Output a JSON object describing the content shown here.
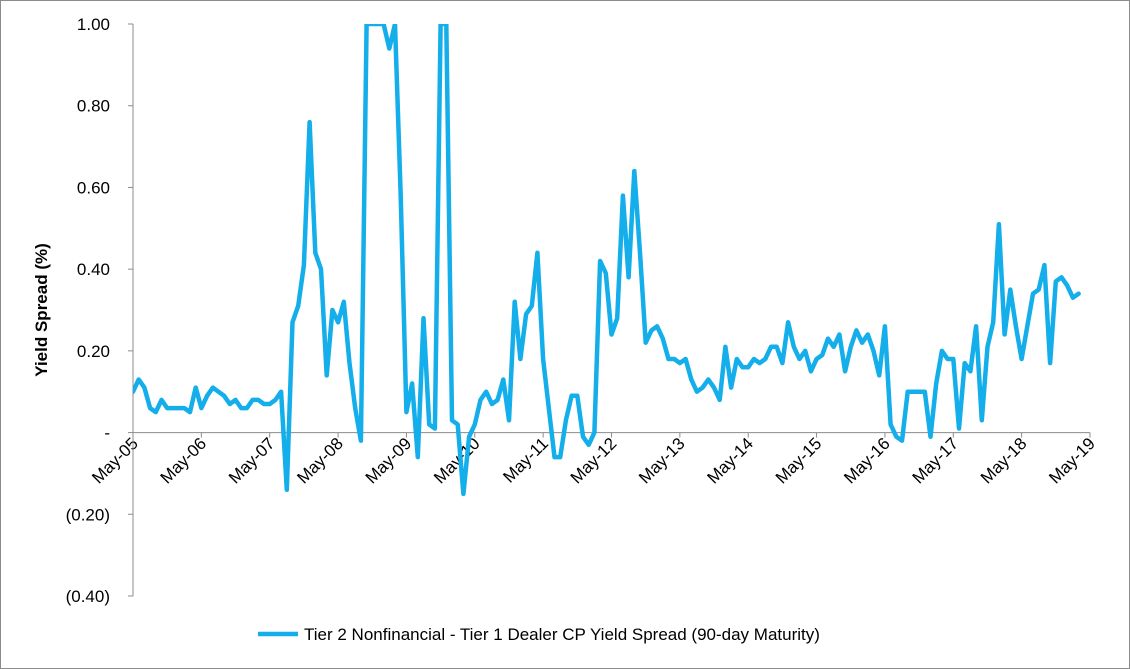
{
  "chart_data": {
    "type": "line",
    "title": "",
    "xlabel": "",
    "ylabel": "Yield Spread (%)",
    "ylim": [
      -0.4,
      1.0
    ],
    "y_ticks": [
      1.0,
      0.8,
      0.6,
      0.4,
      0.2,
      0,
      -0.2,
      -0.4
    ],
    "y_tick_labels": [
      "1.00",
      "0.80",
      "0.60",
      "0.40",
      "0.20",
      "-",
      "(0.20)",
      "(0.40)"
    ],
    "x_tick_labels": [
      "May-05",
      "May-06",
      "May-07",
      "May-08",
      "May-09",
      "May-10",
      "May-11",
      "May-12",
      "May-13",
      "May-14",
      "May-15",
      "May-16",
      "May-17",
      "May-18",
      "May-19"
    ],
    "x_start": "2005-05",
    "x_end": "2019-05",
    "grid": false,
    "legend_position": "bottom",
    "series": [
      {
        "name": "Tier 2 Nonfinancial - Tier 1 Dealer CP Yield Spread (90-day Maturity)",
        "color": "#14AEEA",
        "points": [
          [
            "2005-05",
            0.1
          ],
          [
            "2005-06",
            0.13
          ],
          [
            "2005-07",
            0.11
          ],
          [
            "2005-08",
            0.06
          ],
          [
            "2005-09",
            0.05
          ],
          [
            "2005-10",
            0.08
          ],
          [
            "2005-11",
            0.06
          ],
          [
            "2005-12",
            0.06
          ],
          [
            "2006-01",
            0.06
          ],
          [
            "2006-02",
            0.06
          ],
          [
            "2006-03",
            0.05
          ],
          [
            "2006-04",
            0.11
          ],
          [
            "2006-05",
            0.06
          ],
          [
            "2006-06",
            0.09
          ],
          [
            "2006-07",
            0.11
          ],
          [
            "2006-08",
            0.1
          ],
          [
            "2006-09",
            0.09
          ],
          [
            "2006-10",
            0.07
          ],
          [
            "2006-11",
            0.08
          ],
          [
            "2006-12",
            0.06
          ],
          [
            "2007-01",
            0.06
          ],
          [
            "2007-02",
            0.08
          ],
          [
            "2007-03",
            0.08
          ],
          [
            "2007-04",
            0.07
          ],
          [
            "2007-05",
            0.07
          ],
          [
            "2007-06",
            0.08
          ],
          [
            "2007-07",
            0.1
          ],
          [
            "2007-08",
            -0.14
          ],
          [
            "2007-09",
            0.27
          ],
          [
            "2007-10",
            0.31
          ],
          [
            "2007-11",
            0.41
          ],
          [
            "2007-12",
            0.76
          ],
          [
            "2008-01",
            0.44
          ],
          [
            "2008-02",
            0.4
          ],
          [
            "2008-03",
            0.14
          ],
          [
            "2008-04",
            0.3
          ],
          [
            "2008-05",
            0.27
          ],
          [
            "2008-06",
            0.32
          ],
          [
            "2008-07",
            0.17
          ],
          [
            "2008-08",
            0.06
          ],
          [
            "2008-09",
            -0.02
          ],
          [
            "2008-10",
            1.0
          ],
          [
            "2009-01",
            1.0
          ],
          [
            "2009-02",
            0.94
          ],
          [
            "2009-03",
            1.0
          ],
          [
            "2009-04",
            0.58
          ],
          [
            "2009-05",
            0.05
          ],
          [
            "2009-06",
            0.12
          ],
          [
            "2009-07",
            -0.06
          ],
          [
            "2009-08",
            0.28
          ],
          [
            "2009-09",
            0.02
          ],
          [
            "2009-10",
            0.01
          ],
          [
            "2009-11",
            1.0
          ],
          [
            "2009-12",
            1.0
          ],
          [
            "2010-01",
            0.03
          ],
          [
            "2010-02",
            0.02
          ],
          [
            "2010-03",
            -0.15
          ],
          [
            "2010-04",
            -0.01
          ],
          [
            "2010-05",
            0.02
          ],
          [
            "2010-06",
            0.08
          ],
          [
            "2010-07",
            0.1
          ],
          [
            "2010-08",
            0.07
          ],
          [
            "2010-09",
            0.08
          ],
          [
            "2010-10",
            0.13
          ],
          [
            "2010-11",
            0.03
          ],
          [
            "2010-12",
            0.32
          ],
          [
            "2011-01",
            0.18
          ],
          [
            "2011-02",
            0.29
          ],
          [
            "2011-03",
            0.31
          ],
          [
            "2011-04",
            0.44
          ],
          [
            "2011-05",
            0.18
          ],
          [
            "2011-06",
            0.06
          ],
          [
            "2011-07",
            -0.06
          ],
          [
            "2011-08",
            -0.06
          ],
          [
            "2011-09",
            0.03
          ],
          [
            "2011-10",
            0.09
          ],
          [
            "2011-11",
            0.09
          ],
          [
            "2011-12",
            -0.01
          ],
          [
            "2012-01",
            -0.03
          ],
          [
            "2012-02",
            0.0
          ],
          [
            "2012-03",
            0.42
          ],
          [
            "2012-04",
            0.39
          ],
          [
            "2012-05",
            0.24
          ],
          [
            "2012-06",
            0.28
          ],
          [
            "2012-07",
            0.58
          ],
          [
            "2012-08",
            0.38
          ],
          [
            "2012-09",
            0.64
          ],
          [
            "2012-10",
            0.44
          ],
          [
            "2012-11",
            0.22
          ],
          [
            "2012-12",
            0.25
          ],
          [
            "2013-01",
            0.26
          ],
          [
            "2013-02",
            0.23
          ],
          [
            "2013-03",
            0.18
          ],
          [
            "2013-04",
            0.18
          ],
          [
            "2013-05",
            0.17
          ],
          [
            "2013-06",
            0.18
          ],
          [
            "2013-07",
            0.13
          ],
          [
            "2013-08",
            0.1
          ],
          [
            "2013-09",
            0.11
          ],
          [
            "2013-10",
            0.13
          ],
          [
            "2013-11",
            0.11
          ],
          [
            "2013-12",
            0.08
          ],
          [
            "2014-01",
            0.21
          ],
          [
            "2014-02",
            0.11
          ],
          [
            "2014-03",
            0.18
          ],
          [
            "2014-04",
            0.16
          ],
          [
            "2014-05",
            0.16
          ],
          [
            "2014-06",
            0.18
          ],
          [
            "2014-07",
            0.17
          ],
          [
            "2014-08",
            0.18
          ],
          [
            "2014-09",
            0.21
          ],
          [
            "2014-10",
            0.21
          ],
          [
            "2014-11",
            0.17
          ],
          [
            "2014-12",
            0.27
          ],
          [
            "2015-01",
            0.21
          ],
          [
            "2015-02",
            0.18
          ],
          [
            "2015-03",
            0.2
          ],
          [
            "2015-04",
            0.15
          ],
          [
            "2015-05",
            0.18
          ],
          [
            "2015-06",
            0.19
          ],
          [
            "2015-07",
            0.23
          ],
          [
            "2015-08",
            0.21
          ],
          [
            "2015-09",
            0.24
          ],
          [
            "2015-10",
            0.15
          ],
          [
            "2015-11",
            0.21
          ],
          [
            "2015-12",
            0.25
          ],
          [
            "2016-01",
            0.22
          ],
          [
            "2016-02",
            0.24
          ],
          [
            "2016-03",
            0.2
          ],
          [
            "2016-04",
            0.14
          ],
          [
            "2016-05",
            0.26
          ],
          [
            "2016-06",
            0.02
          ],
          [
            "2016-07",
            -0.01
          ],
          [
            "2016-08",
            -0.02
          ],
          [
            "2016-09",
            0.1
          ],
          [
            "2016-10",
            0.1
          ],
          [
            "2016-11",
            0.1
          ],
          [
            "2016-12",
            0.1
          ],
          [
            "2017-01",
            -0.01
          ],
          [
            "2017-02",
            0.12
          ],
          [
            "2017-03",
            0.2
          ],
          [
            "2017-04",
            0.18
          ],
          [
            "2017-05",
            0.18
          ],
          [
            "2017-06",
            0.01
          ],
          [
            "2017-07",
            0.17
          ],
          [
            "2017-08",
            0.15
          ],
          [
            "2017-09",
            0.26
          ],
          [
            "2017-10",
            0.03
          ],
          [
            "2017-11",
            0.21
          ],
          [
            "2017-12",
            0.27
          ],
          [
            "2018-01",
            0.51
          ],
          [
            "2018-02",
            0.24
          ],
          [
            "2018-03",
            0.35
          ],
          [
            "2018-04",
            0.26
          ],
          [
            "2018-05",
            0.18
          ],
          [
            "2018-06",
            0.26
          ],
          [
            "2018-07",
            0.34
          ],
          [
            "2018-08",
            0.35
          ],
          [
            "2018-09",
            0.41
          ],
          [
            "2018-10",
            0.17
          ],
          [
            "2018-11",
            0.37
          ],
          [
            "2018-12",
            0.38
          ],
          [
            "2019-01",
            0.36
          ],
          [
            "2019-02",
            0.33
          ],
          [
            "2019-03",
            0.34
          ]
        ]
      }
    ]
  }
}
